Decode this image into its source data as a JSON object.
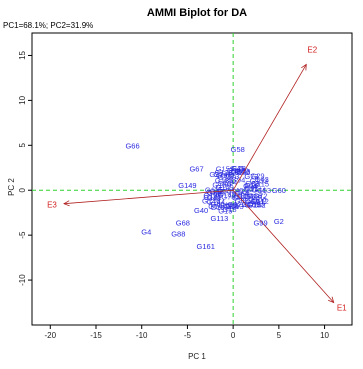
{
  "colors": {
    "genotype": "#2a2ae0",
    "environment": "#d21f1f",
    "arrow": "#b02020",
    "reference_line": "#2fd02f",
    "frame": "#000000"
  },
  "chart_data": {
    "type": "scatter",
    "title": "AMMI Biplot for DA",
    "subtitle": "PC1=68.1%; PC2=31.9%",
    "xlabel": "PC 1",
    "ylabel": "PC 2",
    "xlim": [
      -22,
      13
    ],
    "ylim": [
      -15,
      17.5
    ],
    "x_ticks": [
      -20,
      -15,
      -10,
      -5,
      0,
      5,
      10
    ],
    "y_ticks": [
      -10,
      -5,
      0,
      5,
      10,
      15
    ],
    "reference_lines": {
      "x": 0,
      "y": 0,
      "style": "dashed"
    },
    "environments": [
      {
        "name": "E1",
        "x": 11,
        "y": -12.5
      },
      {
        "name": "E2",
        "x": 8,
        "y": 14
      },
      {
        "name": "E3",
        "x": -18.5,
        "y": -1.5
      }
    ],
    "genotypes": [
      {
        "name": "G58",
        "x": 0.5,
        "y": 4.6
      },
      {
        "name": "G66",
        "x": -11,
        "y": 5
      },
      {
        "name": "G67",
        "x": -4,
        "y": 2.4
      },
      {
        "name": "G149",
        "x": -5,
        "y": 0.6
      },
      {
        "name": "G4",
        "x": -9.5,
        "y": -4.6
      },
      {
        "name": "G88",
        "x": -6,
        "y": -4.8
      },
      {
        "name": "G161",
        "x": -3,
        "y": -6.2
      },
      {
        "name": "G60",
        "x": 5,
        "y": 0
      },
      {
        "name": "G2",
        "x": 5,
        "y": -3.4
      },
      {
        "name": "G113",
        "x": -1.5,
        "y": -3.1
      },
      {
        "name": "G40",
        "x": -3.5,
        "y": -2.2
      },
      {
        "name": "G68",
        "x": -5.5,
        "y": -3.6
      },
      {
        "name": "G99",
        "x": 3,
        "y": -3.6
      },
      {
        "name": "G73",
        "x": 2,
        "y": 1.6
      },
      {
        "name": "G16",
        "x": 2,
        "y": 0.6
      },
      {
        "name": "G70",
        "x": 2,
        "y": -1.6
      }
    ]
  }
}
